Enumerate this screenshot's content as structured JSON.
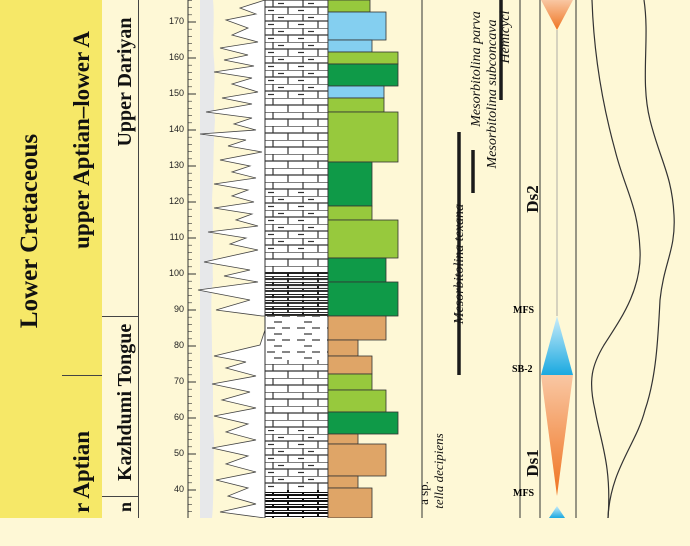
{
  "chrono": {
    "system": "Lower Cretaceous",
    "stage_upper": "upper Aptian–lower A",
    "stage_lower": "r Aptian"
  },
  "lithostrat": {
    "member_upper": "Upper Dariyan",
    "member_middle": "Kazhdumi Tongue",
    "member_lower": "n"
  },
  "depth_scale": {
    "labels": [
      "40",
      "50",
      "60",
      "70",
      "80",
      "90",
      "100",
      "110",
      "120",
      "130",
      "140",
      "150",
      "160",
      "170"
    ]
  },
  "facies_colors": {
    "dark_green": "#0f9a48",
    "light_green": "#97c93d",
    "tan": "#dfa567",
    "light_blue": "#84cff0",
    "grain_curve_bg": "#e7e8ea"
  },
  "biostrat": [
    {
      "name": "Mesorbitolina parva",
      "style": "italic"
    },
    {
      "name": "Mesorbitolina subconcava",
      "style": "italic"
    },
    {
      "name": "Hemicycl",
      "style": "italic"
    },
    {
      "name": "Mesorbitolina texana",
      "style": "italic"
    },
    {
      "name": "a sp.",
      "style": "normal"
    },
    {
      "name": "tella decipiens",
      "style": "italic"
    }
  ],
  "sequence": {
    "ds2": "Ds2",
    "ds1": "Ds1",
    "mfs_upper": "MFS",
    "sb2": "SB-2",
    "mfs_lower": "MFS"
  }
}
